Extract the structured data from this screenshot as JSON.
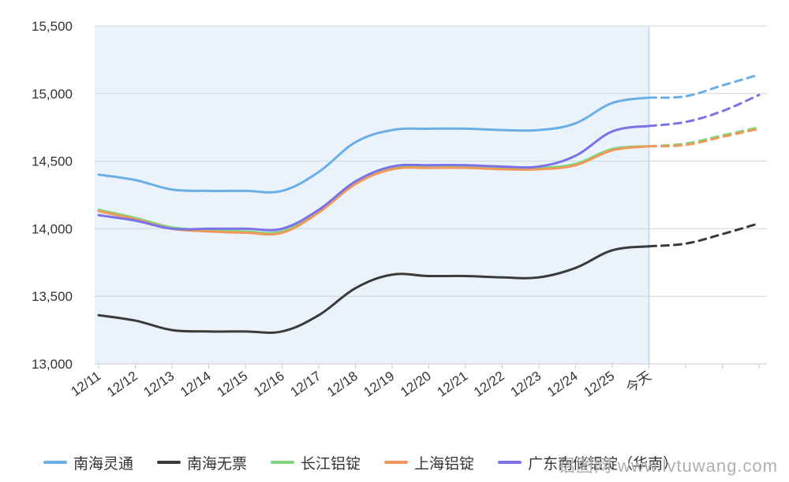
{
  "chart_data": {
    "type": "line",
    "categories": [
      "12/11",
      "12/12",
      "12/13",
      "12/14",
      "12/15",
      "12/16",
      "12/17",
      "12/18",
      "12/19",
      "12/20",
      "12/21",
      "12/22",
      "12/23",
      "12/24",
      "12/25",
      "今天",
      "",
      "",
      ""
    ],
    "forecast_start_index": 15,
    "ylim": [
      13000,
      15500
    ],
    "yticks": [
      "13,000",
      "13,500",
      "14,000",
      "14,500",
      "15,000",
      "15,500"
    ],
    "ytick_values": [
      13000,
      13500,
      14000,
      14500,
      15000,
      15500
    ],
    "grid": true,
    "legend_position": "bottom",
    "series": [
      {
        "name": "南海灵通",
        "color": "#6aaee6",
        "values": [
          14400,
          14360,
          14290,
          14280,
          14280,
          14280,
          14420,
          14640,
          14730,
          14740,
          14740,
          14730,
          14730,
          14780,
          14930,
          14970,
          14980,
          15060,
          15140
        ]
      },
      {
        "name": "南海无票",
        "color": "#3a3a3a",
        "values": [
          13360,
          13320,
          13250,
          13240,
          13240,
          13240,
          13360,
          13560,
          13660,
          13650,
          13650,
          13640,
          13640,
          13710,
          13840,
          13870,
          13890,
          13960,
          14040
        ]
      },
      {
        "name": "长江铝锭",
        "color": "#7fd67f",
        "values": [
          14140,
          14080,
          14010,
          13990,
          13980,
          13980,
          14130,
          14340,
          14450,
          14460,
          14460,
          14450,
          14450,
          14480,
          14590,
          14610,
          14630,
          14690,
          14750
        ]
      },
      {
        "name": "上海铝锭",
        "color": "#f0995a",
        "values": [
          14130,
          14070,
          14000,
          13980,
          13970,
          13970,
          14120,
          14330,
          14440,
          14450,
          14450,
          14440,
          14440,
          14470,
          14580,
          14610,
          14620,
          14680,
          14740
        ]
      },
      {
        "name": "广东南储铝锭（华南）",
        "color": "#7b72e8",
        "values": [
          14100,
          14060,
          14000,
          14000,
          14000,
          14000,
          14140,
          14350,
          14460,
          14470,
          14470,
          14460,
          14460,
          14540,
          14720,
          14760,
          14790,
          14870,
          14990
        ]
      }
    ]
  },
  "watermark": "铝图网 www.lvtuwang.com"
}
